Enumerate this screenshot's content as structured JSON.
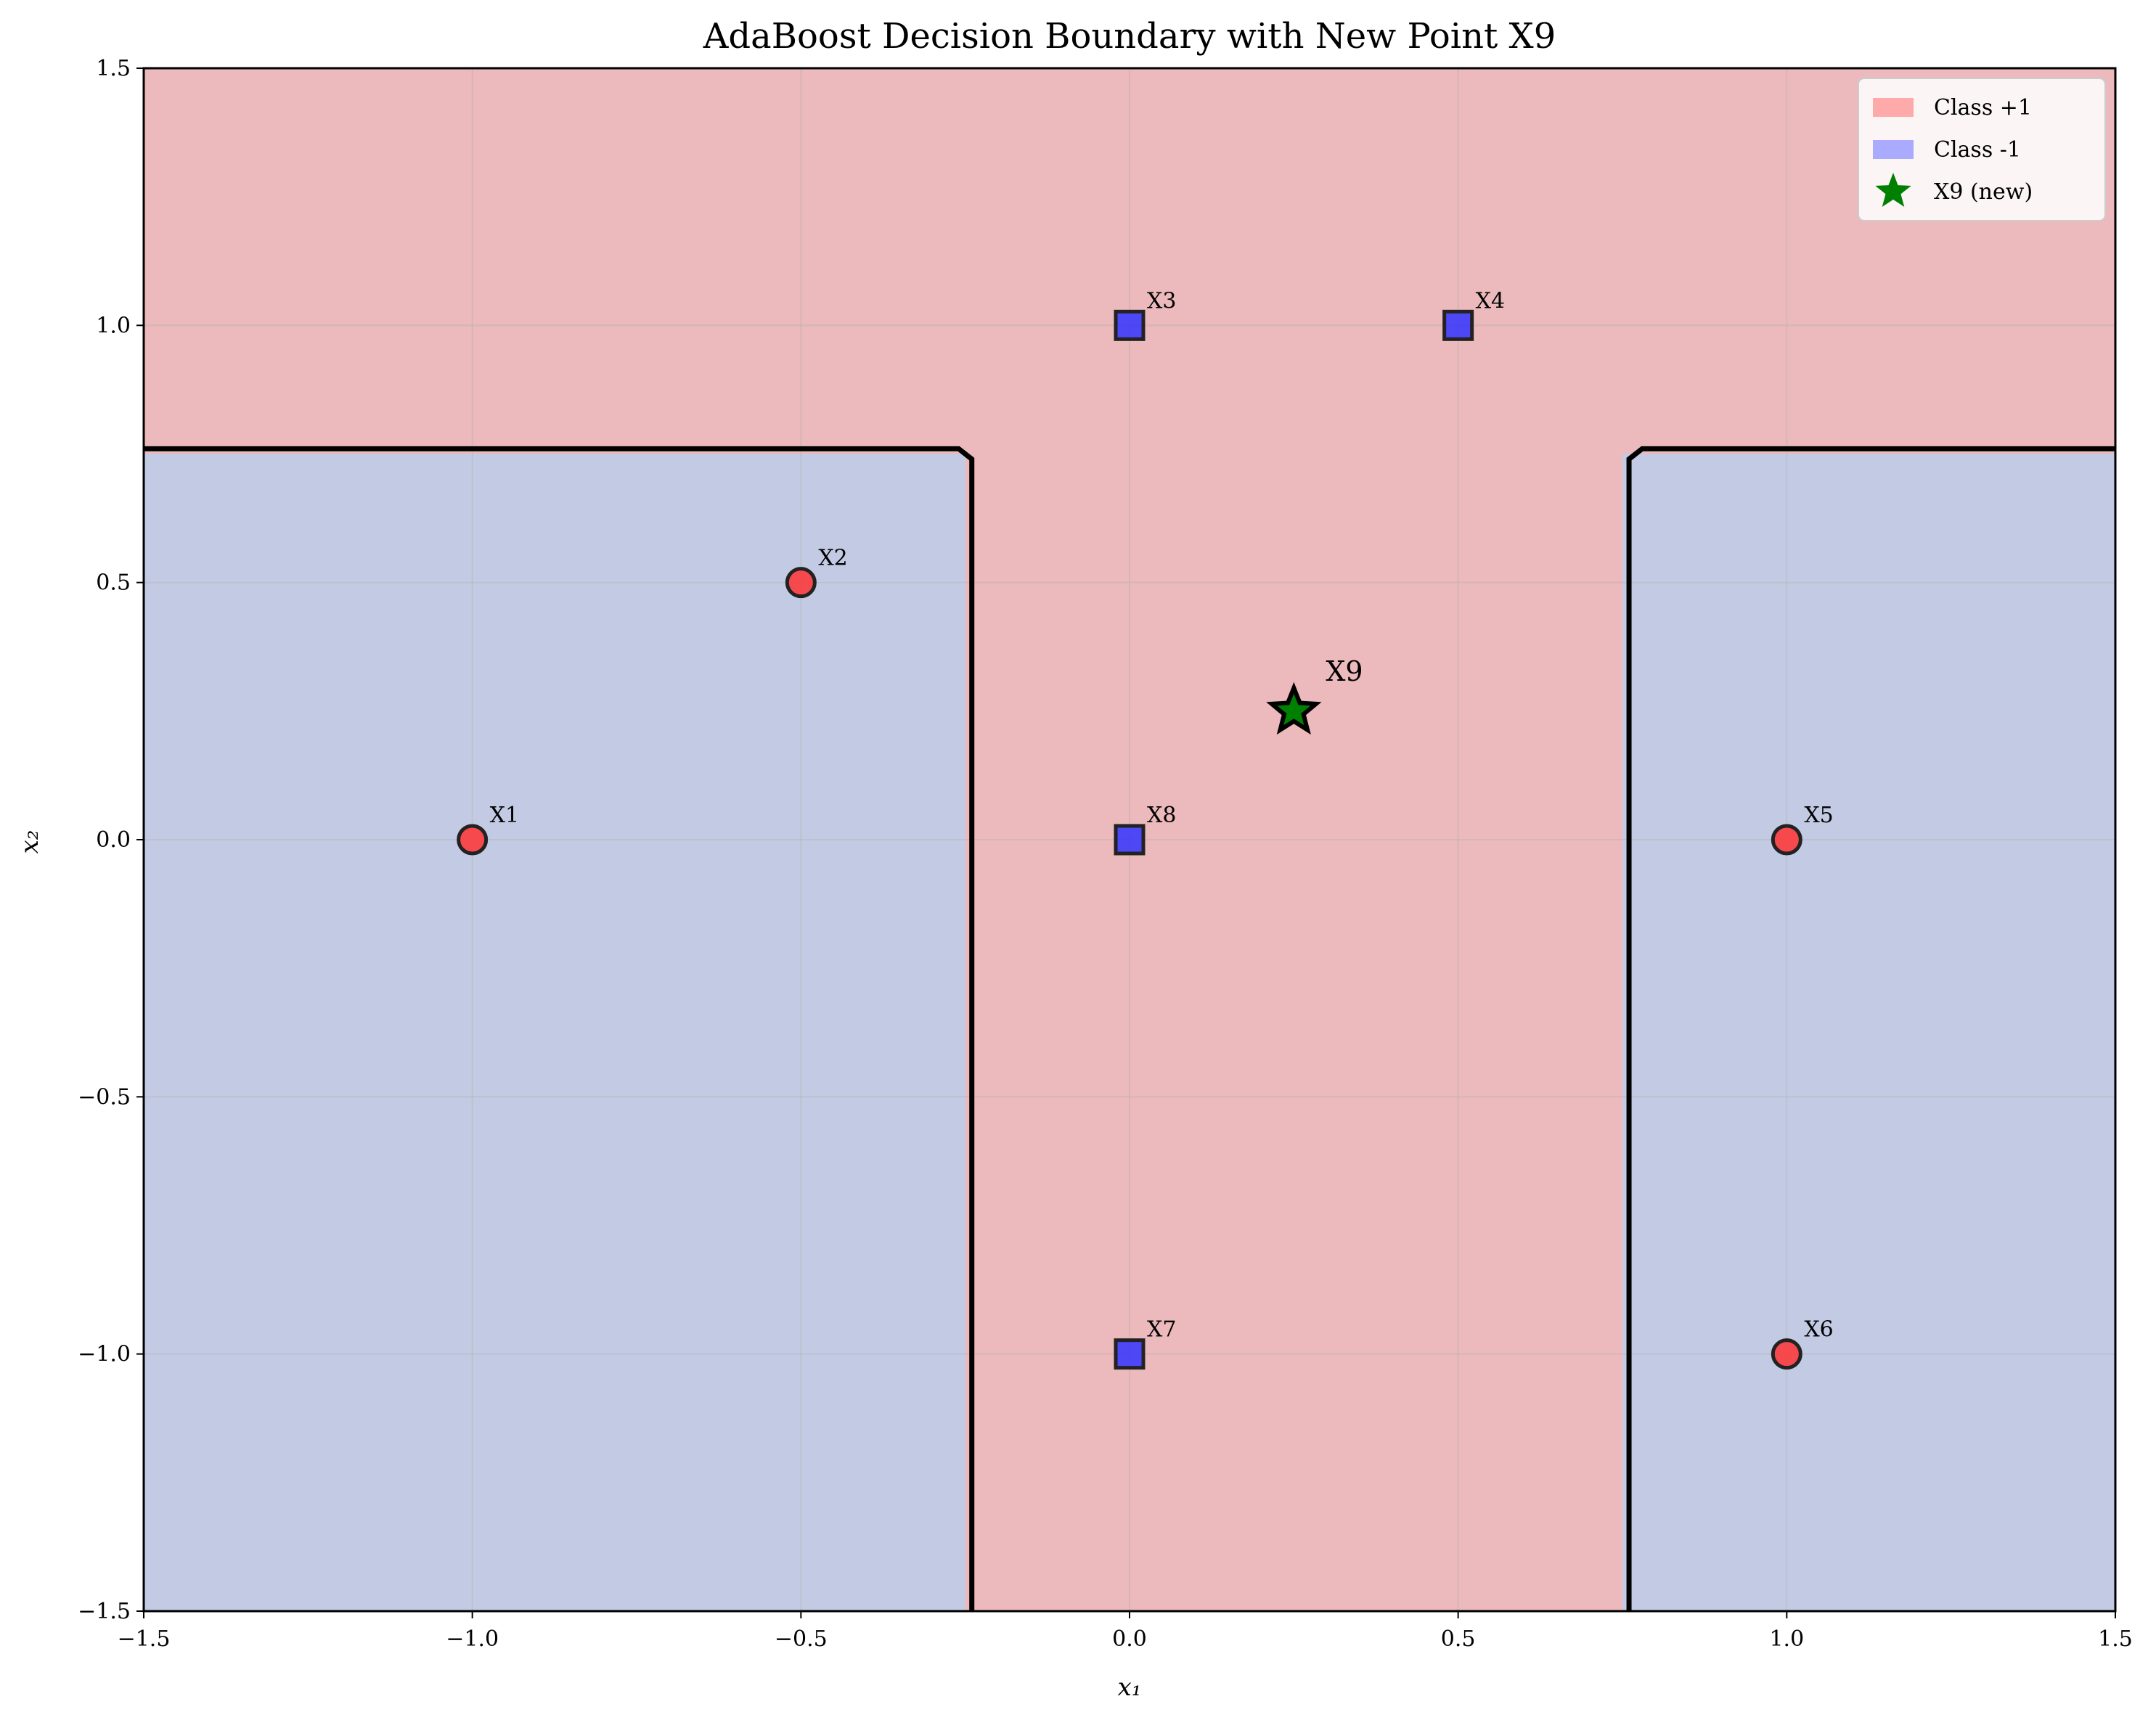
{
  "chart_data": {
    "type": "scatter",
    "title": "AdaBoost Decision Boundary with New Point X9",
    "xlabel": "x₁",
    "ylabel": "x₂",
    "xlim": [
      -1.5,
      1.5
    ],
    "ylim": [
      -1.5,
      1.5
    ],
    "xticks": [
      -1.5,
      -1.0,
      -0.5,
      0.0,
      0.5,
      1.0,
      1.5
    ],
    "yticks": [
      -1.5,
      -1.0,
      -0.5,
      0.0,
      0.5,
      1.0,
      1.5
    ],
    "xtick_labels": [
      "−1.5",
      "−1.0",
      "−0.5",
      "0.0",
      "0.5",
      "1.0",
      "1.5"
    ],
    "ytick_labels": [
      "−1.5",
      "−1.0",
      "−0.5",
      "0.0",
      "0.5",
      "1.0",
      "1.5"
    ],
    "grid": true,
    "legend_position": "top-right",
    "colors": {
      "class_pos_region": "#ecb9bc",
      "class_neg_region": "#c3cbe4",
      "class_pos_marker": "#ff3333",
      "class_neg_marker": "#3333ff",
      "new_point": "#008000",
      "legend_pos_patch": "#ffaaaa",
      "legend_neg_patch": "#aaaaff"
    },
    "decision_regions": {
      "negative_region_bounds": [
        {
          "x": [
            -1.5,
            -0.25
          ],
          "y": [
            -1.5,
            0.75
          ]
        },
        {
          "x": [
            0.75,
            1.5
          ],
          "y": [
            -1.5,
            0.75
          ]
        }
      ],
      "boundary": [
        [
          -1.5,
          0.76
        ],
        [
          -0.26,
          0.76
        ],
        [
          -0.24,
          0.74
        ],
        [
          -0.24,
          -1.5
        ]
      ],
      "boundary_right": [
        [
          0.76,
          -1.5
        ],
        [
          0.76,
          0.74
        ],
        [
          0.78,
          0.76
        ],
        [
          1.5,
          0.76
        ]
      ]
    },
    "points": [
      {
        "label": "X1",
        "x": -1.0,
        "y": 0.0,
        "class": 1,
        "marker": "circle"
      },
      {
        "label": "X2",
        "x": -0.5,
        "y": 0.5,
        "class": 1,
        "marker": "circle"
      },
      {
        "label": "X3",
        "x": 0.0,
        "y": 1.0,
        "class": -1,
        "marker": "square"
      },
      {
        "label": "X4",
        "x": 0.5,
        "y": 1.0,
        "class": -1,
        "marker": "square"
      },
      {
        "label": "X5",
        "x": 1.0,
        "y": 0.0,
        "class": 1,
        "marker": "circle"
      },
      {
        "label": "X6",
        "x": 1.0,
        "y": -1.0,
        "class": 1,
        "marker": "circle"
      },
      {
        "label": "X7",
        "x": 0.0,
        "y": -1.0,
        "class": -1,
        "marker": "square"
      },
      {
        "label": "X8",
        "x": 0.0,
        "y": 0.0,
        "class": -1,
        "marker": "square"
      }
    ],
    "new_point": {
      "label": "X9",
      "x": 0.25,
      "y": 0.25
    },
    "legend": [
      {
        "label": "Class +1",
        "kind": "patch",
        "color_key": "legend_pos_patch"
      },
      {
        "label": "Class -1",
        "kind": "patch",
        "color_key": "legend_neg_patch"
      },
      {
        "label": "X9 (new)",
        "kind": "star",
        "color_key": "new_point"
      }
    ]
  }
}
